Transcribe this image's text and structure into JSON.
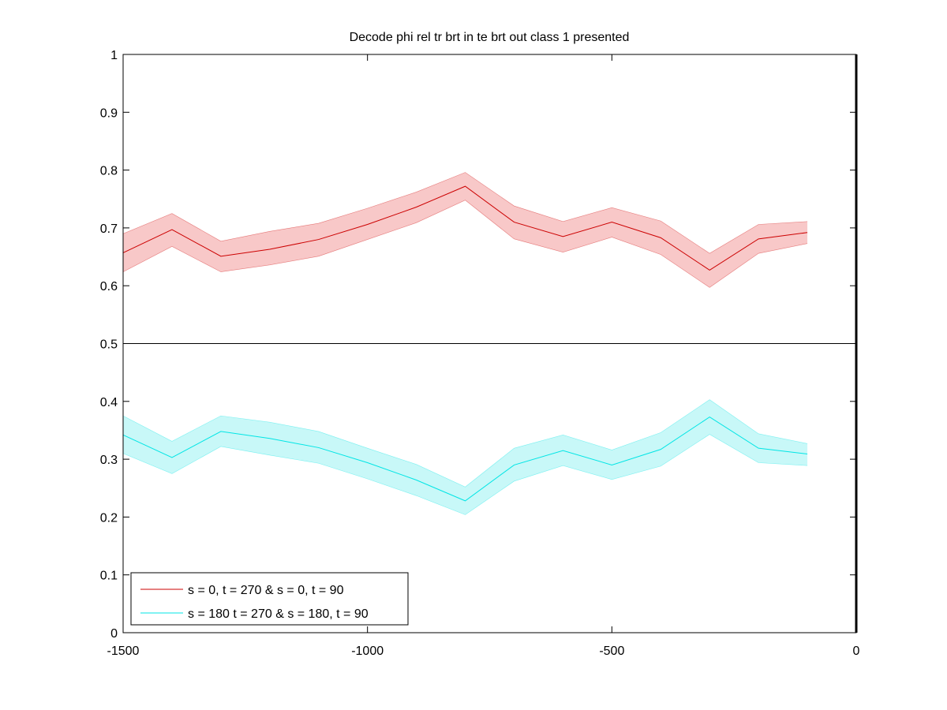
{
  "chart_data": {
    "type": "line",
    "title": "Decode phi rel tr brt in te brt out  class 1 presented",
    "xlabel": "",
    "ylabel": "",
    "xlim": [
      -1500,
      0
    ],
    "ylim": [
      0,
      1
    ],
    "xticks": [
      -1500,
      -1000,
      -500,
      0
    ],
    "xtick_labels": [
      "-1500",
      "-1000",
      "-500",
      "0"
    ],
    "yticks": [
      0,
      0.1,
      0.2,
      0.3,
      0.4,
      0.5,
      0.6,
      0.7,
      0.8,
      0.9,
      1
    ],
    "ytick_labels": [
      "0",
      "0.1",
      "0.2",
      "0.3",
      "0.4",
      "0.5",
      "0.6",
      "0.7",
      "0.8",
      "0.9",
      "1"
    ],
    "grid": false,
    "legend_position": "bottom-left",
    "reference_lines": [
      {
        "orientation": "horizontal",
        "value": 0.5,
        "color": "#000000"
      },
      {
        "orientation": "vertical",
        "value": 0,
        "color": "#000000"
      }
    ],
    "x": [
      -1500,
      -1400,
      -1300,
      -1200,
      -1100,
      -1000,
      -900,
      -800,
      -700,
      -600,
      -500,
      -400,
      -300,
      -200,
      -100
    ],
    "series": [
      {
        "name": "s = 0, t = 270 & s = 0, t = 90",
        "color": "#cc0000",
        "fill_color": "#f8c8c8",
        "values": [
          0.657,
          0.697,
          0.651,
          0.663,
          0.68,
          0.706,
          0.736,
          0.772,
          0.71,
          0.685,
          0.71,
          0.683,
          0.627,
          0.681,
          0.692
        ],
        "upper": [
          0.69,
          0.725,
          0.677,
          0.694,
          0.708,
          0.734,
          0.762,
          0.796,
          0.738,
          0.711,
          0.735,
          0.712,
          0.656,
          0.706,
          0.711
        ],
        "lower": [
          0.624,
          0.668,
          0.624,
          0.636,
          0.651,
          0.68,
          0.709,
          0.748,
          0.681,
          0.658,
          0.684,
          0.654,
          0.597,
          0.656,
          0.673
        ]
      },
      {
        "name": "s = 180 t = 270 & s = 180, t = 90",
        "color": "#00e5e5",
        "fill_color": "#c8f8f8",
        "values": [
          0.342,
          0.303,
          0.348,
          0.336,
          0.32,
          0.294,
          0.264,
          0.228,
          0.29,
          0.315,
          0.29,
          0.317,
          0.373,
          0.319,
          0.309
        ],
        "upper": [
          0.375,
          0.331,
          0.375,
          0.364,
          0.348,
          0.319,
          0.291,
          0.252,
          0.319,
          0.342,
          0.316,
          0.346,
          0.403,
          0.344,
          0.327
        ],
        "lower": [
          0.31,
          0.275,
          0.322,
          0.307,
          0.293,
          0.266,
          0.237,
          0.204,
          0.262,
          0.289,
          0.265,
          0.288,
          0.343,
          0.294,
          0.289
        ]
      }
    ]
  }
}
